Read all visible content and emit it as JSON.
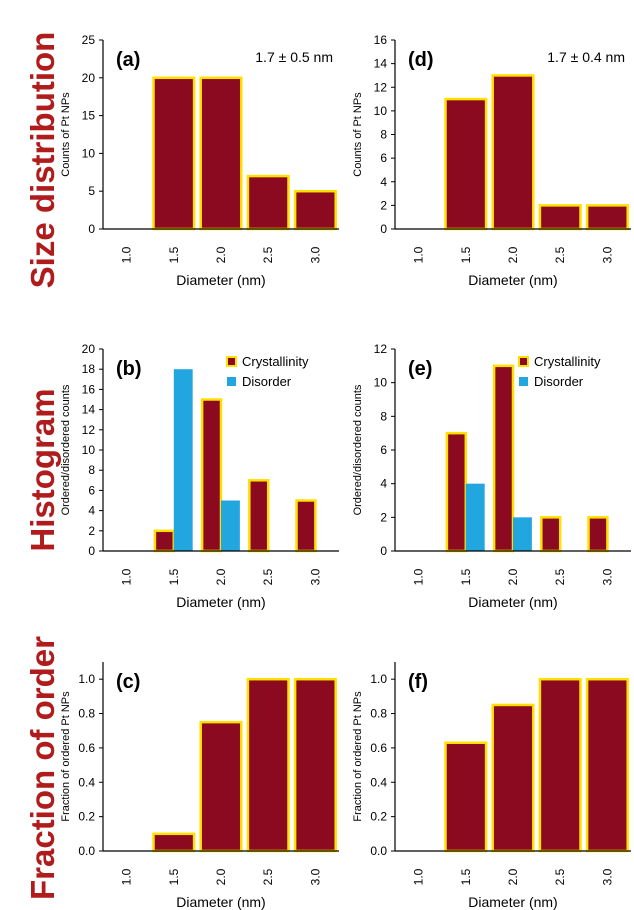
{
  "row_labels": [
    "Size distribution",
    "Histogram",
    "Fraction of order"
  ],
  "colors": {
    "crystallinity": "#8b0a1f",
    "disorder": "#21a6e0",
    "outline": "#ffe000",
    "row_label": "#b01c1c"
  },
  "chart_data": [
    {
      "type": "bar",
      "panel": "(a)",
      "annotation": "1.7 ± 0.5 nm",
      "categories": [
        "1.0",
        "1.5",
        "2.0",
        "2.5",
        "3.0"
      ],
      "series": [
        {
          "values": [
            0,
            20,
            20,
            7,
            5
          ]
        }
      ],
      "xlabel": "Diameter (nm)",
      "ylabel": "Counts of Pt NPs",
      "ylim": [
        0,
        25
      ],
      "yticks": [
        "0",
        "5",
        "10",
        "15",
        "20",
        "25"
      ]
    },
    {
      "type": "bar",
      "panel": "(b)",
      "annotation": "",
      "categories": [
        "1.0",
        "1.5",
        "2.0",
        "2.5",
        "3.0"
      ],
      "series": [
        {
          "name": "Crystallinity",
          "values": [
            0,
            2,
            15,
            7,
            5
          ]
        },
        {
          "name": "Disorder",
          "values": [
            0,
            18,
            5,
            0,
            0
          ]
        }
      ],
      "xlabel": "Diameter (nm)",
      "ylabel": "Ordered/disordered counts",
      "ylim": [
        0,
        20
      ],
      "yticks": [
        "0",
        "2",
        "4",
        "6",
        "8",
        "10",
        "12",
        "14",
        "16",
        "18",
        "20"
      ],
      "legend": "top-right"
    },
    {
      "type": "bar",
      "panel": "(c)",
      "annotation": "",
      "categories": [
        "1.0",
        "1.5",
        "2.0",
        "2.5",
        "3.0"
      ],
      "series": [
        {
          "values": [
            0,
            0.1,
            0.75,
            1.0,
            1.0
          ]
        }
      ],
      "xlabel": "Diameter (nm)",
      "ylabel": "Fraction of ordered Pt NPs",
      "ylim": [
        0,
        1.1
      ],
      "yticks": [
        "0.0",
        "0.2",
        "0.4",
        "0.6",
        "0.8",
        "1.0"
      ]
    },
    {
      "type": "bar",
      "panel": "(d)",
      "annotation": "1.7 ± 0.4 nm",
      "categories": [
        "1.0",
        "1.5",
        "2.0",
        "2.5",
        "3.0"
      ],
      "series": [
        {
          "values": [
            0,
            11,
            13,
            2,
            2
          ]
        }
      ],
      "xlabel": "Diameter (nm)",
      "ylabel": "Counts of Pt NPs",
      "ylim": [
        0,
        16
      ],
      "yticks": [
        "0",
        "2",
        "4",
        "6",
        "8",
        "10",
        "12",
        "14",
        "16"
      ]
    },
    {
      "type": "bar",
      "panel": "(e)",
      "annotation": "",
      "categories": [
        "1.0",
        "1.5",
        "2.0",
        "2.5",
        "3.0"
      ],
      "series": [
        {
          "name": "Crystallinity",
          "values": [
            0,
            7,
            11,
            2,
            2
          ]
        },
        {
          "name": "Disorder",
          "values": [
            0,
            4,
            2,
            0,
            0
          ]
        }
      ],
      "xlabel": "Diameter (nm)",
      "ylabel": "Ordered/disordered counts",
      "ylim": [
        0,
        12
      ],
      "yticks": [
        "0",
        "2",
        "4",
        "6",
        "8",
        "10",
        "12"
      ],
      "legend": "top-right"
    },
    {
      "type": "bar",
      "panel": "(f)",
      "annotation": "",
      "categories": [
        "1.0",
        "1.5",
        "2.0",
        "2.5",
        "3.0"
      ],
      "series": [
        {
          "values": [
            0,
            0.63,
            0.85,
            1.0,
            1.0
          ]
        }
      ],
      "xlabel": "Diameter (nm)",
      "ylabel": "Fraction of ordered Pt NPs",
      "ylim": [
        0,
        1.1
      ],
      "yticks": [
        "0.0",
        "0.2",
        "0.4",
        "0.6",
        "0.8",
        "1.0"
      ]
    }
  ]
}
